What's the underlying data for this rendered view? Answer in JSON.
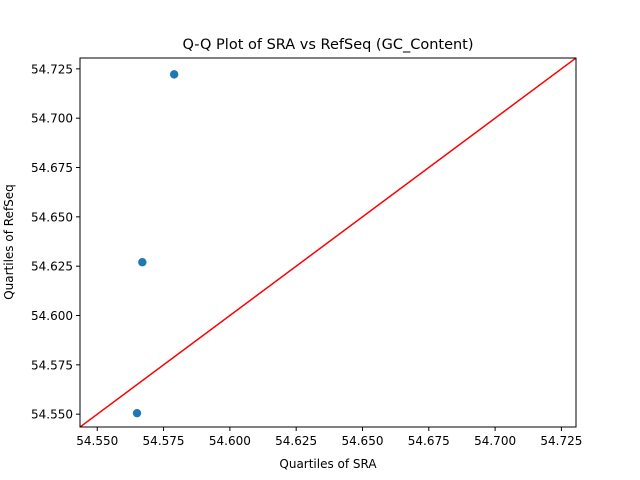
{
  "chart_data": {
    "type": "scatter",
    "title": "Q-Q Plot of SRA vs RefSeq (GC_Content)",
    "xlabel": "Quartiles of SRA",
    "ylabel": "Quartiles of RefSeq",
    "xlim": [
      54.5435,
      54.7305
    ],
    "ylim": [
      54.5435,
      54.7305
    ],
    "xticks": [
      54.55,
      54.575,
      54.6,
      54.625,
      54.65,
      54.675,
      54.7,
      54.725
    ],
    "yticks": [
      54.55,
      54.575,
      54.6,
      54.625,
      54.65,
      54.675,
      54.7,
      54.725
    ],
    "xtick_labels": [
      "54.550",
      "54.575",
      "54.600",
      "54.625",
      "54.650",
      "54.675",
      "54.700",
      "54.725"
    ],
    "ytick_labels": [
      "54.550",
      "54.575",
      "54.600",
      "54.625",
      "54.650",
      "54.675",
      "54.700",
      "54.725"
    ],
    "points": [
      {
        "x": 54.565,
        "y": 54.5505
      },
      {
        "x": 54.567,
        "y": 54.627
      },
      {
        "x": 54.579,
        "y": 54.7222
      }
    ],
    "reference_line": {
      "type": "y=x",
      "color": "#ff0000"
    },
    "point_color": "#1f77b4",
    "grid": false,
    "legend": "none"
  }
}
